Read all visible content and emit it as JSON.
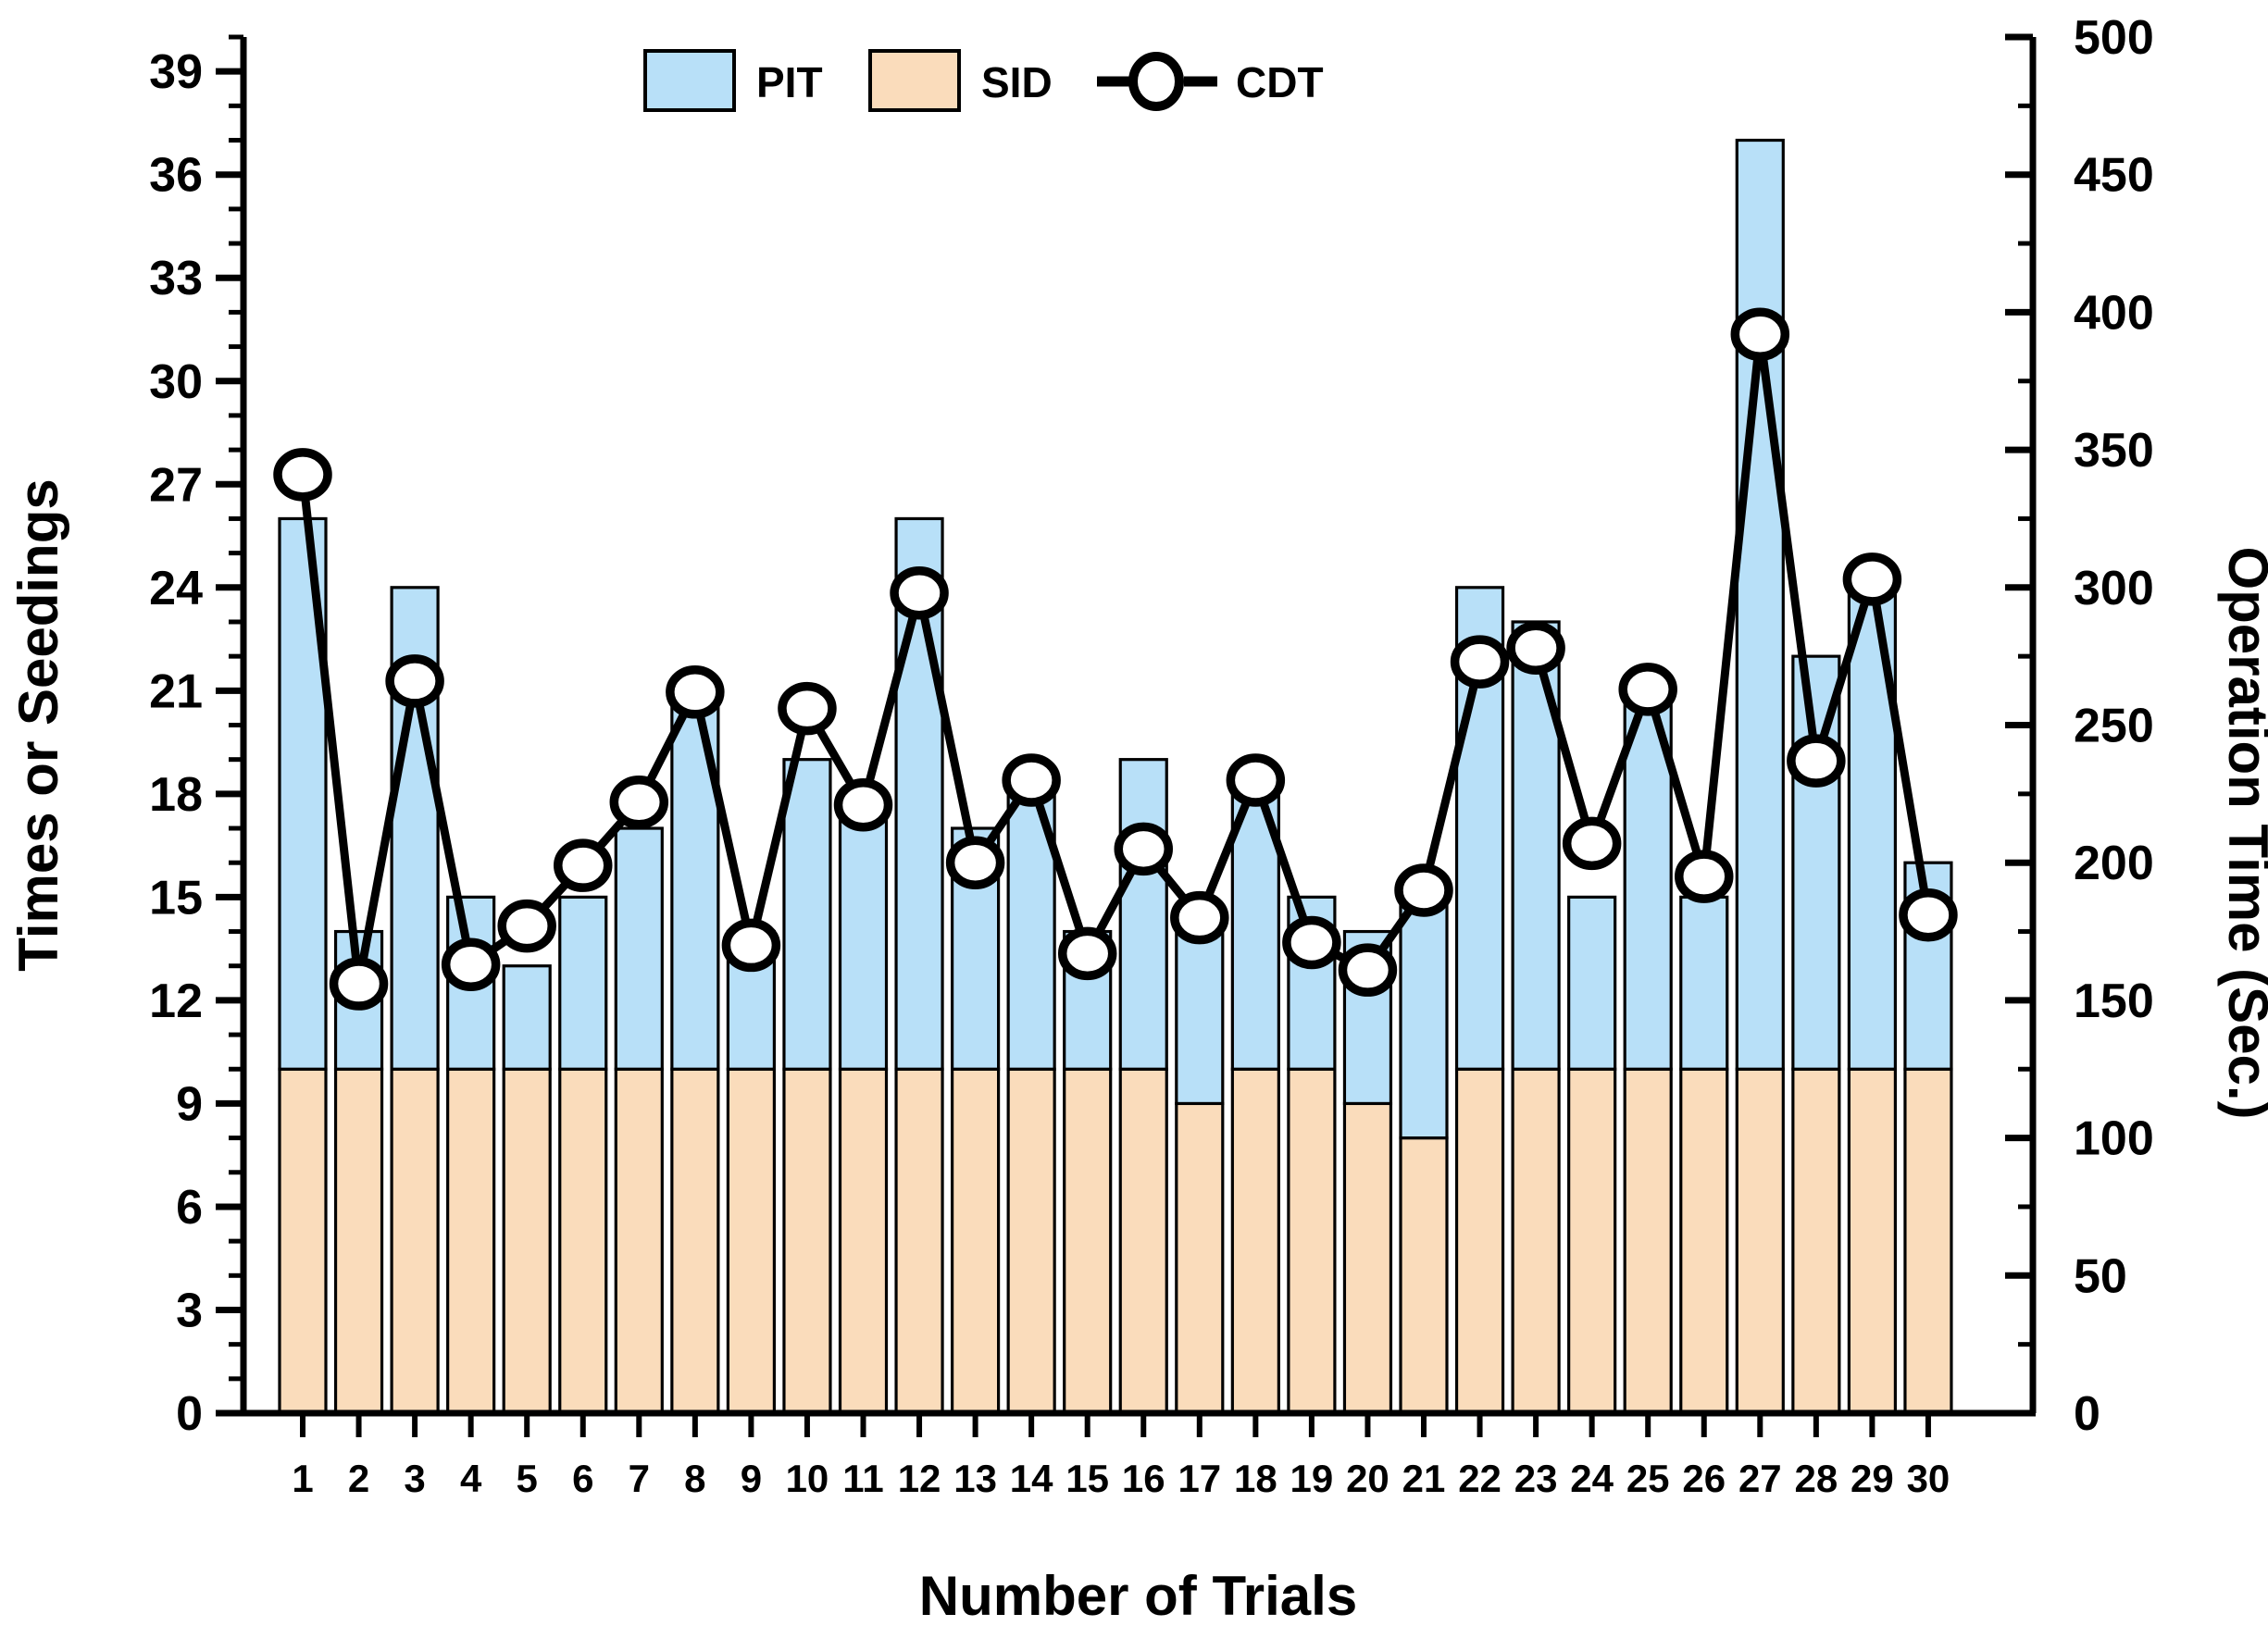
{
  "chart_data": {
    "type": "bar",
    "subtype": "stacked-bar-with-line",
    "categories": [
      1,
      2,
      3,
      4,
      5,
      6,
      7,
      8,
      9,
      10,
      11,
      12,
      13,
      14,
      15,
      16,
      17,
      18,
      19,
      20,
      21,
      22,
      23,
      24,
      25,
      26,
      27,
      28,
      29,
      30
    ],
    "series": [
      {
        "name": "SID",
        "type": "bar",
        "stack": "trials",
        "color": "#fadcbb",
        "values": [
          10,
          10,
          10,
          10,
          10,
          10,
          10,
          10,
          10,
          10,
          10,
          10,
          10,
          10,
          10,
          10,
          9,
          10,
          10,
          9,
          8,
          10,
          10,
          10,
          10,
          10,
          10,
          10,
          10,
          10
        ]
      },
      {
        "name": "PIT",
        "type": "bar",
        "stack": "trials",
        "color": "#b8e0f8",
        "values": [
          16,
          4,
          14,
          5,
          3,
          5,
          7,
          11,
          4,
          9,
          8,
          16,
          7,
          8,
          4,
          9,
          5,
          8,
          5,
          5,
          7,
          14,
          13,
          5,
          11,
          5,
          27,
          12,
          14,
          6
        ]
      },
      {
        "name": "CDT",
        "type": "line",
        "axis": "right",
        "color": "#000000",
        "marker": "open-circle",
        "values": [
          341,
          156,
          266,
          163,
          177,
          199,
          222,
          262,
          170,
          256,
          221,
          298,
          200,
          230,
          167,
          205,
          180,
          230,
          171,
          161,
          190,
          273,
          278,
          207,
          263,
          195,
          392,
          237,
          303,
          181
        ]
      }
    ],
    "stack_totals": [
      26,
      14,
      24,
      15,
      13,
      15,
      17,
      21,
      14,
      19,
      18,
      26,
      17,
      18,
      14,
      19,
      14,
      18,
      15,
      14,
      15,
      24,
      23,
      15,
      21,
      15,
      37,
      22,
      24,
      16
    ],
    "title": "",
    "xlabel": "Number of Trials",
    "ylabel_left": "Times or Seedings",
    "ylabel_right": "Operation Time (Sec.)",
    "ylim_left": [
      0,
      40
    ],
    "ylim_right": [
      0,
      500
    ],
    "left_major_step": 3,
    "left_minor_step": 1,
    "right_major_step": 50,
    "right_minor_step": 25,
    "grid": false,
    "legend_position": "top-center"
  },
  "legend": {
    "items": [
      {
        "label": "PIT",
        "swatch": "bar",
        "color": "#b8e0f8"
      },
      {
        "label": "SID",
        "swatch": "bar",
        "color": "#fadcbb"
      },
      {
        "label": "CDT",
        "swatch": "line-open-circle",
        "color": "#000000"
      }
    ]
  },
  "axes": {
    "left": {
      "label": "Times or Seedings",
      "tick_labels": [
        "0",
        "3",
        "6",
        "9",
        "12",
        "15",
        "18",
        "21",
        "24",
        "27",
        "30",
        "33",
        "36",
        "39"
      ]
    },
    "right": {
      "label": "Operation Time (Sec.)",
      "tick_labels": [
        "0",
        "50",
        "100",
        "150",
        "200",
        "250",
        "300",
        "350",
        "400",
        "450",
        "500"
      ]
    },
    "x": {
      "label": "Number of Trials",
      "tick_labels": [
        "1",
        "2",
        "3",
        "4",
        "5",
        "6",
        "7",
        "8",
        "9",
        "10",
        "11",
        "12",
        "13",
        "14",
        "15",
        "16",
        "17",
        "18",
        "19",
        "20",
        "21",
        "22",
        "23",
        "24",
        "25",
        "26",
        "27",
        "28",
        "29",
        "30"
      ]
    }
  },
  "style": {
    "background": "#ffffff",
    "axis_color": "#000000",
    "bar_outline": "#000000",
    "pit_fill": "#b8e0f8",
    "sid_fill": "#fadcbb",
    "cdt_color": "#000000"
  }
}
